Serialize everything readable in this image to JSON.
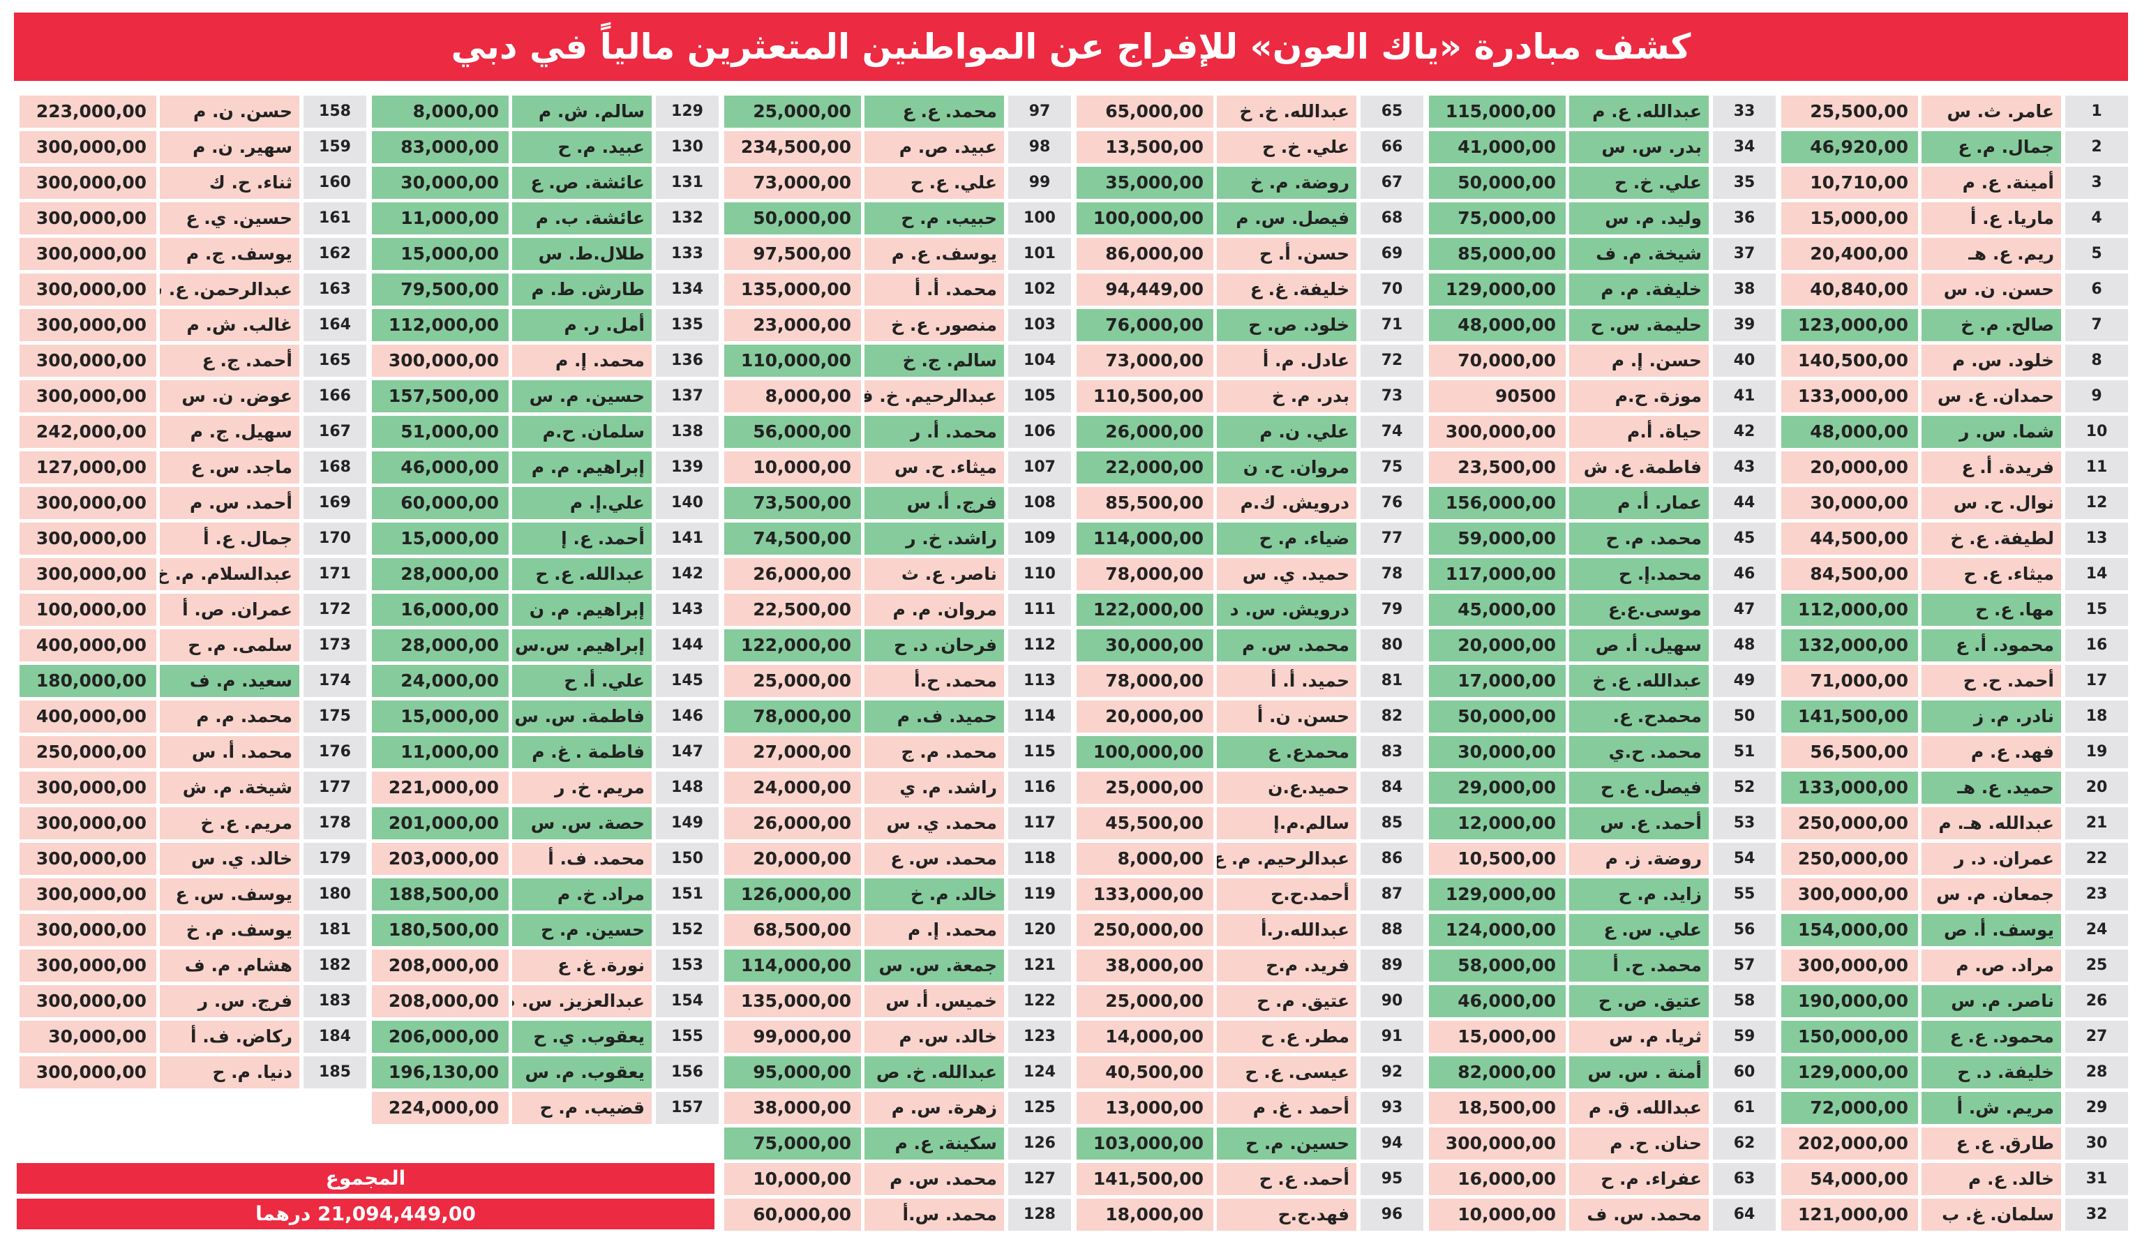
{
  "header": {
    "title": "كشف مبادرة «ياك العون» للإفراج عن المواطنين المتعثرين مالياً في دبي"
  },
  "table": {
    "columns": [
      [
        [
          1,
          "عامر. ث. س",
          "25,500,00",
          "#f9d3cc"
        ],
        [
          2,
          "جمال. م. ع",
          "46,920,00",
          "#86cb9c"
        ],
        [
          3,
          "أمينة. ع. م",
          "10,710,00",
          "#f9d3cc"
        ],
        [
          4,
          "ماريا. ع. أ",
          "15,000,00",
          "#f9d3cc"
        ],
        [
          5,
          "ريم. ع. هـ",
          "20,400,00",
          "#f9d3cc"
        ],
        [
          6,
          "حسن. ن. س",
          "40,840,00",
          "#f9d3cc"
        ],
        [
          7,
          "صالح. م. خ",
          "123,000,00",
          "#86cb9c"
        ],
        [
          8,
          "خلود. س. م",
          "140,500,00",
          "#f9d3cc"
        ],
        [
          9,
          "حمدان. ع. س",
          "133,000,00",
          "#f9d3cc"
        ],
        [
          10,
          "شما. س. ر",
          "48,000,00",
          "#86cb9c"
        ],
        [
          11,
          "فريدة. أ. ع",
          "20,000,00",
          "#f9d3cc"
        ],
        [
          12,
          "نوال. ح. س",
          "30,000,00",
          "#f9d3cc"
        ],
        [
          13,
          "لطيفة. ع. خ",
          "44,500,00",
          "#f9d3cc"
        ],
        [
          14,
          "ميثاء. ع. ح",
          "84,500,00",
          "#f9d3cc"
        ],
        [
          15,
          "مها. ع. ح",
          "112,000,00",
          "#86cb9c"
        ],
        [
          16,
          "محمود. أ. ع",
          "132,000,00",
          "#86cb9c"
        ],
        [
          17,
          "أحمد. ح. ح",
          "71,000,00",
          "#f9d3cc"
        ],
        [
          18,
          "نادر. م. ز",
          "141,500,00",
          "#86cb9c"
        ],
        [
          19,
          "فهد. ع. م",
          "56,500,00",
          "#f9d3cc"
        ],
        [
          20,
          "حميد. ع. هـ",
          "133,000,00",
          "#86cb9c"
        ],
        [
          21,
          "عبدالله. هـ. م",
          "250,000,00",
          "#f9d3cc"
        ],
        [
          22,
          "عمران. د. ر",
          "250,000,00",
          "#f9d3cc"
        ],
        [
          23,
          "جمعان. م. س",
          "300,000,00",
          "#f9d3cc"
        ],
        [
          24,
          "يوسف. أ. ص",
          "154,000,00",
          "#86cb9c"
        ],
        [
          25,
          "مراد. ص. م",
          "300,000,00",
          "#f9d3cc"
        ],
        [
          26,
          "ناصر. م. س",
          "190,000,00",
          "#86cb9c"
        ],
        [
          27,
          "محمود. ع. ع",
          "150,000,00",
          "#86cb9c"
        ],
        [
          28,
          "خليفة. د. ح",
          "129,000,00",
          "#86cb9c"
        ],
        [
          29,
          "مريم. ش. أ",
          "72,000,00",
          "#86cb9c"
        ],
        [
          30,
          "طارق. ع. ع",
          "202,000,00",
          "#f9d3cc"
        ],
        [
          31,
          "خالد. ع. م",
          "54,000,00",
          "#f9d3cc"
        ],
        [
          32,
          "سلمان. غ. ب",
          "121,000,00",
          "#f9d3cc"
        ]
      ],
      [
        [
          33,
          "عبدالله. ع. م",
          "115,000,00",
          "#86cb9c"
        ],
        [
          34,
          "بدر. س. س",
          "41,000,00",
          "#86cb9c"
        ],
        [
          35,
          "علي. خ. ح",
          "50,000,00",
          "#86cb9c"
        ],
        [
          36,
          "وليد. م. س",
          "75,000,00",
          "#86cb9c"
        ],
        [
          37,
          "شيخة. م. ف",
          "85,000,00",
          "#86cb9c"
        ],
        [
          38,
          "خليفة. م. م",
          "129,000,00",
          "#86cb9c"
        ],
        [
          39,
          "حليمة. س. ح",
          "48,000,00",
          "#86cb9c"
        ],
        [
          40,
          "حسن. إ. م",
          "70,000,00",
          "#f9d3cc"
        ],
        [
          41,
          "موزة. ح.م",
          "90500",
          "#f9d3cc"
        ],
        [
          42,
          "حياة. أ.م",
          "300,000,00",
          "#f9d3cc"
        ],
        [
          43,
          "فاطمة. ع. ش",
          "23,500,00",
          "#f9d3cc"
        ],
        [
          44,
          "عمار. أ. م",
          "156,000,00",
          "#86cb9c"
        ],
        [
          45,
          "محمد. م. ح",
          "59,000,00",
          "#86cb9c"
        ],
        [
          46,
          "محمد.إ. ح",
          "117,000,00",
          "#86cb9c"
        ],
        [
          47,
          "موسى.ع.ع",
          "45,000,00",
          "#86cb9c"
        ],
        [
          48,
          "سهيل. أ. ص",
          "20,000,00",
          "#86cb9c"
        ],
        [
          49,
          "عبدالله. ع. خ",
          "17,000,00",
          "#86cb9c"
        ],
        [
          50,
          "محمدح. ع.",
          "50,000,00",
          "#86cb9c"
        ],
        [
          51,
          "محمد. ح.ي",
          "30,000,00",
          "#86cb9c"
        ],
        [
          52,
          "فيصل. ع. ح",
          "29,000,00",
          "#86cb9c"
        ],
        [
          53,
          "أحمد. ع. س",
          "12,000,00",
          "#86cb9c"
        ],
        [
          54,
          "روضة. ز. م",
          "10,500,00",
          "#f9d3cc"
        ],
        [
          55,
          "زايد. م. ح",
          "129,000,00",
          "#86cb9c"
        ],
        [
          56,
          "علي. س. ع",
          "124,000,00",
          "#86cb9c"
        ],
        [
          57,
          "محمد. ح. أ",
          "58,000,00",
          "#86cb9c"
        ],
        [
          58,
          "عتيق. ص. ح",
          "46,000,00",
          "#86cb9c"
        ],
        [
          59,
          "ثريا. م. س",
          "15,000,00",
          "#f9d3cc"
        ],
        [
          60,
          "أمنة . س. س",
          "82,000,00",
          "#86cb9c"
        ],
        [
          61,
          "عبدالله. ق. م",
          "18,500,00",
          "#f9d3cc"
        ],
        [
          62,
          "حنان. ح. م",
          "300,000,00",
          "#f9d3cc"
        ],
        [
          63,
          "عفراء. م. ح",
          "16,000,00",
          "#f9d3cc"
        ],
        [
          64,
          "محمد. س. ف",
          "10,000,00",
          "#f9d3cc"
        ]
      ],
      [
        [
          65,
          "عبدالله. خ. خ",
          "65,000,00",
          "#f9d3cc"
        ],
        [
          66,
          "علي. خ. ح",
          "13,500,00",
          "#f9d3cc"
        ],
        [
          67,
          "روضة. م. خ",
          "35,000,00",
          "#86cb9c"
        ],
        [
          68,
          "فيصل. س. م",
          "100,000,00",
          "#86cb9c"
        ],
        [
          69,
          "حسن. أ. ح",
          "86,000,00",
          "#f9d3cc"
        ],
        [
          70,
          "خليفة. غ. ع",
          "94,449,00",
          "#f9d3cc"
        ],
        [
          71,
          "خلود. ص. ح",
          "76,000,00",
          "#86cb9c"
        ],
        [
          72,
          "عادل. م. أ",
          "73,000,00",
          "#f9d3cc"
        ],
        [
          73,
          "بدر. م. خ",
          "110,500,00",
          "#f9d3cc"
        ],
        [
          74,
          "علي. ن. م",
          "26,000,00",
          "#86cb9c"
        ],
        [
          75,
          "مروان. ح. ن",
          "22,000,00",
          "#86cb9c"
        ],
        [
          76,
          "درويش. ك.م",
          "85,500,00",
          "#f9d3cc"
        ],
        [
          77,
          "ضياء. م. ح",
          "114,000,00",
          "#86cb9c"
        ],
        [
          78,
          "حميد. ي. س",
          "78,000,00",
          "#f9d3cc"
        ],
        [
          79,
          "درويش. س. د",
          "122,000,00",
          "#86cb9c"
        ],
        [
          80,
          "محمد. س. م",
          "30,000,00",
          "#86cb9c"
        ],
        [
          81,
          "حميد. أ. أ",
          "78,000,00",
          "#f9d3cc"
        ],
        [
          82,
          "حسن. ن. أ",
          "20,000,00",
          "#f9d3cc"
        ],
        [
          83,
          "محمدع. ع",
          "100,000,00",
          "#86cb9c"
        ],
        [
          84,
          "حميد.ع.ن",
          "25,000,00",
          "#f9d3cc"
        ],
        [
          85,
          "سالم.م.إ",
          "45,500,00",
          "#f9d3cc"
        ],
        [
          86,
          "عبدالرحيم. م. ع",
          "8,000,00",
          "#f9d3cc"
        ],
        [
          87,
          "أحمد.ح.ح",
          "133,000,00",
          "#f9d3cc"
        ],
        [
          88,
          "عبدالله.ر.أ",
          "250,000,00",
          "#f9d3cc"
        ],
        [
          89,
          "فريد. م.ح",
          "38,000,00",
          "#f9d3cc"
        ],
        [
          90,
          "عتيق. م. ح",
          "25,000,00",
          "#f9d3cc"
        ],
        [
          91,
          "مطر. ع. ح",
          "14,000,00",
          "#f9d3cc"
        ],
        [
          92,
          "عيسى. ع. ح",
          "40,500,00",
          "#f9d3cc"
        ],
        [
          93,
          "أحمد . غ. م",
          "13,000,00",
          "#f9d3cc"
        ],
        [
          94,
          "حسين. م. ح",
          "103,000,00",
          "#86cb9c"
        ],
        [
          95,
          "أحمد. ع. ح",
          "141,500,00",
          "#f9d3cc"
        ],
        [
          96,
          "فهد.ج.ح",
          "18,000,00",
          "#f9d3cc"
        ]
      ],
      [
        [
          97,
          "محمد. ع. ع",
          "25,000,00",
          "#86cb9c"
        ],
        [
          98,
          "عبيد. ص. م",
          "234,500,00",
          "#f9d3cc"
        ],
        [
          99,
          "علي. ع. ح",
          "73,000,00",
          "#f9d3cc"
        ],
        [
          100,
          "حبيب. م. ح",
          "50,000,00",
          "#86cb9c"
        ],
        [
          101,
          "يوسف. ع. م",
          "97,500,00",
          "#f9d3cc"
        ],
        [
          102,
          "محمد. أ. أ",
          "135,000,00",
          "#f9d3cc"
        ],
        [
          103,
          "منصور. ع. خ",
          "23,000,00",
          "#f9d3cc"
        ],
        [
          104,
          "سالم. ج. خ",
          "110,000,00",
          "#86cb9c"
        ],
        [
          105,
          "عبدالرحيم. خ. ف",
          "8,000,00",
          "#f9d3cc"
        ],
        [
          106,
          "محمد. أ. ر",
          "56,000,00",
          "#86cb9c"
        ],
        [
          107,
          "ميثاء. ح. س",
          "10,000,00",
          "#f9d3cc"
        ],
        [
          108,
          "فرج. أ. س",
          "73,500,00",
          "#86cb9c"
        ],
        [
          109,
          "راشد. خ. ر",
          "74,500,00",
          "#86cb9c"
        ],
        [
          110,
          "ناصر. ع. ث",
          "26,000,00",
          "#f9d3cc"
        ],
        [
          111,
          "مروان. م. م",
          "22,500,00",
          "#f9d3cc"
        ],
        [
          112,
          "فرحان. د. ح",
          "122,000,00",
          "#86cb9c"
        ],
        [
          113,
          "محمد. ح.أ",
          "25,000,00",
          "#f9d3cc"
        ],
        [
          114,
          "حميد. ف. م",
          "78,000,00",
          "#86cb9c"
        ],
        [
          115,
          "محمد. م. ج",
          "27,000,00",
          "#f9d3cc"
        ],
        [
          116,
          "راشد. م. ي",
          "24,000,00",
          "#f9d3cc"
        ],
        [
          117,
          "محمد. ي. س",
          "26,000,00",
          "#f9d3cc"
        ],
        [
          118,
          "محمد. س. ع",
          "20,000,00",
          "#f9d3cc"
        ],
        [
          119,
          "خالد. م. خ",
          "126,000,00",
          "#86cb9c"
        ],
        [
          120,
          "محمد. إ. م",
          "68,500,00",
          "#f9d3cc"
        ],
        [
          121,
          "جمعة. س. س",
          "114,000,00",
          "#86cb9c"
        ],
        [
          122,
          "خميس. أ. س",
          "135,000,00",
          "#f9d3cc"
        ],
        [
          123,
          "خالد. س. م",
          "99,000,00",
          "#f9d3cc"
        ],
        [
          124,
          "عبدالله. خ. ص",
          "95,000,00",
          "#86cb9c"
        ],
        [
          125,
          "زهرة. س. م",
          "38,000,00",
          "#f9d3cc"
        ],
        [
          126,
          "سكينة. ع. م",
          "75,000,00",
          "#86cb9c"
        ],
        [
          127,
          "محمد. س. م",
          "10,000,00",
          "#f9d3cc"
        ],
        [
          128,
          "محمد. س.أ",
          "60,000,00",
          "#f9d3cc"
        ]
      ],
      [
        [
          129,
          "سالم. ش. م",
          "8,000,00",
          "#86cb9c"
        ],
        [
          130,
          "عبيد. م. ح",
          "83,000,00",
          "#86cb9c"
        ],
        [
          131,
          "عائشة. ص. ع",
          "30,000,00",
          "#86cb9c"
        ],
        [
          132,
          "عائشة. ب. م",
          "11,000,00",
          "#86cb9c"
        ],
        [
          133,
          "طلال.ط. س",
          "15,000,00",
          "#86cb9c"
        ],
        [
          134,
          "طارش. ط. م",
          "79,500,00",
          "#86cb9c"
        ],
        [
          135,
          "أمل. ر. م",
          "112,000,00",
          "#86cb9c"
        ],
        [
          136,
          "محمد. إ. م",
          "300,000,00",
          "#f9d3cc"
        ],
        [
          137,
          "حسين. م. س",
          "157,500,00",
          "#86cb9c"
        ],
        [
          138,
          "سلمان. ح.م",
          "51,000,00",
          "#86cb9c"
        ],
        [
          139,
          "إبراهيم. م. م",
          "46,000,00",
          "#86cb9c"
        ],
        [
          140,
          "علي.إ. م",
          "60,000,00",
          "#86cb9c"
        ],
        [
          141,
          "أحمد. ع. إ",
          "15,000,00",
          "#86cb9c"
        ],
        [
          142,
          "عبدالله. ع. ح",
          "28,000,00",
          "#86cb9c"
        ],
        [
          143,
          "إبراهيم. م. ن",
          "16,000,00",
          "#86cb9c"
        ],
        [
          144,
          "إبراهيم. س.س",
          "28,000,00",
          "#86cb9c"
        ],
        [
          145,
          "علي. أ. ح",
          "24,000,00",
          "#86cb9c"
        ],
        [
          146,
          "فاطمة. س. س",
          "15,000,00",
          "#86cb9c"
        ],
        [
          147,
          "فاطمة . غ. م",
          "11,000,00",
          "#86cb9c"
        ],
        [
          148,
          "مريم. خ. ر",
          "221,000,00",
          "#f9d3cc"
        ],
        [
          149,
          "حصة. س. س",
          "201,000,00",
          "#86cb9c"
        ],
        [
          150,
          "محمد. ف. أ",
          "203,000,00",
          "#f9d3cc"
        ],
        [
          151,
          "مراد. خ. م",
          "188,500,00",
          "#86cb9c"
        ],
        [
          152,
          "حسين. م. ح",
          "180,500,00",
          "#86cb9c"
        ],
        [
          153,
          "نورة. غ. ع",
          "208,000,00",
          "#f9d3cc"
        ],
        [
          154,
          "عبدالعزيز. س. م",
          "208,000,00",
          "#f9d3cc"
        ],
        [
          155,
          "يعقوب. ي. ح",
          "206,000,00",
          "#86cb9c"
        ],
        [
          156,
          "يعقوب. م. س",
          "196,130,00",
          "#86cb9c"
        ],
        [
          157,
          "قضيب. م. ح",
          "224,000,00",
          "#f9d3cc"
        ]
      ],
      [
        [
          158,
          "حسن. ن. م",
          "223,000,00",
          "#f9d3cc"
        ],
        [
          159,
          "سهير. ن. م",
          "300,000,00",
          "#f9d3cc"
        ],
        [
          160,
          "ثناء. ح. ك",
          "300,000,00",
          "#f9d3cc"
        ],
        [
          161,
          "حسين. ي. ع",
          "300,000,00",
          "#f9d3cc"
        ],
        [
          162,
          "يوسف. ج. م",
          "300,000,00",
          "#f9d3cc"
        ],
        [
          163,
          "عبدالرحمن. ع. س",
          "300,000,00",
          "#f9d3cc"
        ],
        [
          164,
          "غالب. ش. م",
          "300,000,00",
          "#f9d3cc"
        ],
        [
          165,
          "أحمد. ج. ع",
          "300,000,00",
          "#f9d3cc"
        ],
        [
          166,
          "عوض. ن. س",
          "300,000,00",
          "#f9d3cc"
        ],
        [
          167,
          "سهيل. ج. م",
          "242,000,00",
          "#f9d3cc"
        ],
        [
          168,
          "ماجد. س. ع",
          "127,000,00",
          "#f9d3cc"
        ],
        [
          169,
          "أحمد. س. م",
          "300,000,00",
          "#f9d3cc"
        ],
        [
          170,
          "جمال. ع. أ",
          "300,000,00",
          "#f9d3cc"
        ],
        [
          171,
          "عبدالسلام. م. خ",
          "300,000,00",
          "#f9d3cc"
        ],
        [
          172,
          "عمران. ص. أ",
          "100,000,00",
          "#f9d3cc"
        ],
        [
          173,
          "سلمى. م. ح",
          "400,000,00",
          "#f9d3cc"
        ],
        [
          174,
          "سعيد. م. ف",
          "180,000,00",
          "#86cb9c"
        ],
        [
          175,
          "محمد. م. م",
          "400,000,00",
          "#f9d3cc"
        ],
        [
          176,
          "محمد. أ. س",
          "250,000,00",
          "#f9d3cc"
        ],
        [
          177,
          "شيخة. م. ش",
          "300,000,00",
          "#f9d3cc"
        ],
        [
          178,
          "مريم. ع. خ",
          "300,000,00",
          "#f9d3cc"
        ],
        [
          179,
          "خالد. ي. س",
          "300,000,00",
          "#f9d3cc"
        ],
        [
          180,
          "يوسف. س. ع",
          "300,000,00",
          "#f9d3cc"
        ],
        [
          181,
          "يوسف. م. خ",
          "300,000,00",
          "#f9d3cc"
        ],
        [
          182,
          "هشام. م. ف",
          "300,000,00",
          "#f9d3cc"
        ],
        [
          183,
          "فرج. س. ر",
          "300,000,00",
          "#f9d3cc"
        ],
        [
          184,
          "ركاض. ف. أ",
          "30,000,00",
          "#f9d3cc"
        ],
        [
          185,
          "دنيا. م. ح",
          "300,000,00",
          "#f9d3cc"
        ]
      ]
    ]
  },
  "total": {
    "label": "المجموع",
    "value": "21,094,449,00 درهما"
  }
}
